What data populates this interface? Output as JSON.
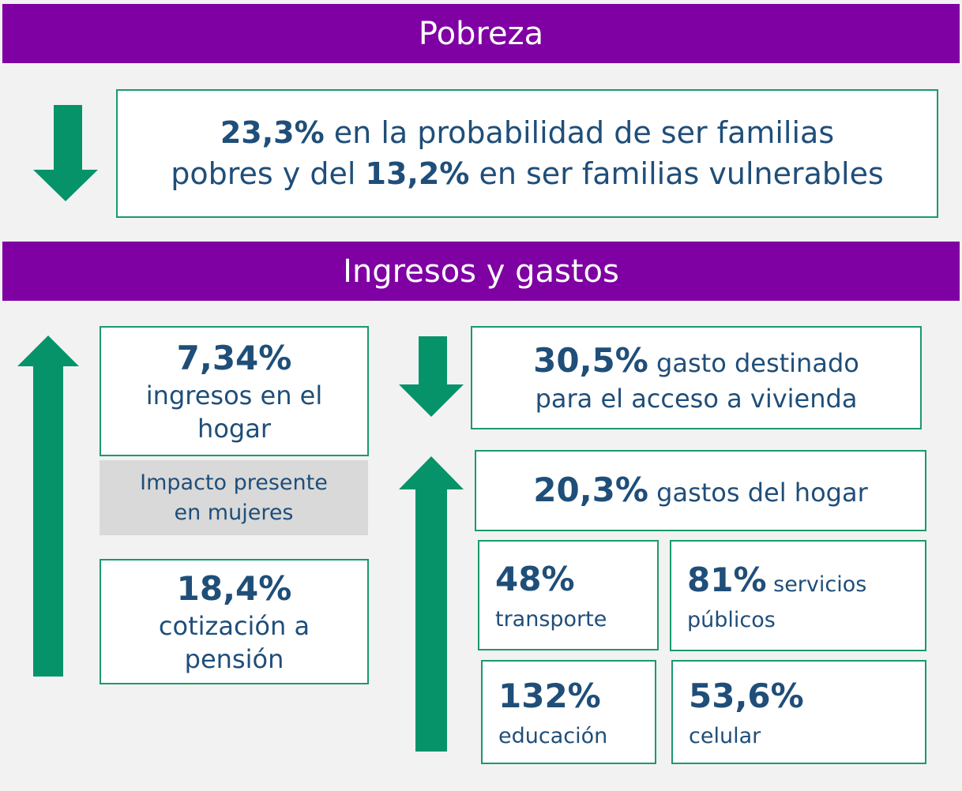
{
  "sections": [
    {
      "title": "Pobreza"
    },
    {
      "title": "Ingresos y gastos"
    }
  ],
  "pobreza": {
    "value1": "23,3%",
    "text1": "en la probabilidad de ser familias",
    "text2": "pobres y del",
    "value2": "13,2%",
    "text3": "en ser familias vulnerables"
  },
  "ingresos": {
    "value": "7,34%",
    "lines": [
      "ingresos en el",
      "hogar"
    ]
  },
  "note": {
    "lines": [
      "Impacto presente",
      "en mujeres"
    ]
  },
  "pension": {
    "value": "18,4%",
    "lines": [
      "cotización a",
      "pensión"
    ]
  },
  "vivienda": {
    "value": "30,5%",
    "lines": [
      "gasto destinado",
      "para el acceso a vivienda"
    ]
  },
  "hogar": {
    "value": "20,3%",
    "label": "gastos del hogar"
  },
  "items": [
    {
      "value": "48%",
      "lines": [
        "transporte"
      ]
    },
    {
      "value": "81%",
      "lines": [
        "servicios",
        "públicos"
      ]
    },
    {
      "value": "132%",
      "lines": [
        "educación"
      ]
    },
    {
      "value": "53,6%",
      "lines": [
        "celular"
      ]
    }
  ]
}
